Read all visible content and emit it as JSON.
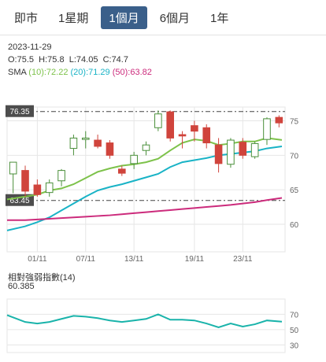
{
  "tabs": [
    {
      "label": "即市",
      "active": false
    },
    {
      "label": "1星期",
      "active": false
    },
    {
      "label": "1個月",
      "active": true
    },
    {
      "label": "6個月",
      "active": false
    },
    {
      "label": "1年",
      "active": false
    }
  ],
  "info": {
    "date": "2023-11-29",
    "open_label": "O:",
    "open": "75.5",
    "high_label": "H:",
    "high": "75.8",
    "low_label": "L:",
    "low": "74.05",
    "close_label": "C:",
    "close": "74.7",
    "sma_label": "SMA",
    "sma10_label": "(10):",
    "sma10": "72.22",
    "sma20_label": "(20):",
    "sma20": "71.29",
    "sma50_label": "(50):",
    "sma50": "63.82"
  },
  "rsi": {
    "title": "相對強弱指數",
    "period": "(14)",
    "value": "60.385"
  },
  "colors": {
    "up": "#ffffff",
    "up_stroke": "#4a8f3a",
    "down": "#d0443c",
    "sma10": "#7dc24a",
    "sma20": "#19b3c6",
    "sma50": "#cc2b7c",
    "rsi": "#19b3aa",
    "grid": "#e6e6e6"
  },
  "chart_data": [
    {
      "type": "candlestick",
      "x_tick_labels": [
        "01/11",
        "07/11",
        "13/11",
        "19/11",
        "23/11"
      ],
      "x_tick_indices": [
        2,
        6,
        10,
        15,
        19
      ],
      "y_ticks": [
        60,
        65,
        70,
        75
      ],
      "ylim": [
        56,
        77
      ],
      "high_marker": 76.35,
      "low_marker": 63.45,
      "candles": [
        {
          "open": 67.3,
          "high": 69.0,
          "low": 64.5,
          "close": 69.0
        },
        {
          "open": 67.8,
          "high": 68.5,
          "low": 64.0,
          "close": 64.8
        },
        {
          "open": 65.7,
          "high": 66.5,
          "low": 64.0,
          "close": 64.3
        },
        {
          "open": 64.6,
          "high": 66.5,
          "low": 64.0,
          "close": 66.0
        },
        {
          "open": 66.3,
          "high": 68.0,
          "low": 65.5,
          "close": 67.8
        },
        {
          "open": 71.0,
          "high": 73.0,
          "low": 70.0,
          "close": 72.5
        },
        {
          "open": 72.3,
          "high": 73.5,
          "low": 71.0,
          "close": 72.5
        },
        {
          "open": 72.2,
          "high": 73.0,
          "low": 71.0,
          "close": 71.3
        },
        {
          "open": 71.8,
          "high": 72.2,
          "low": 69.5,
          "close": 70.0
        },
        {
          "open": 68.0,
          "high": 68.5,
          "low": 67.0,
          "close": 67.4
        },
        {
          "open": 68.8,
          "high": 70.5,
          "low": 68.0,
          "close": 70.0
        },
        {
          "open": 70.7,
          "high": 72.0,
          "low": 70.0,
          "close": 71.5
        },
        {
          "open": 74.0,
          "high": 76.5,
          "low": 73.5,
          "close": 76.0
        },
        {
          "open": 76.3,
          "high": 76.5,
          "low": 72.0,
          "close": 72.5
        },
        {
          "open": 73.0,
          "high": 73.5,
          "low": 71.0,
          "close": 72.8
        },
        {
          "open": 74.3,
          "high": 75.0,
          "low": 72.0,
          "close": 73.5
        },
        {
          "open": 74.0,
          "high": 74.5,
          "low": 71.0,
          "close": 71.8
        },
        {
          "open": 71.5,
          "high": 72.5,
          "low": 67.5,
          "close": 68.8
        },
        {
          "open": 68.7,
          "high": 72.5,
          "low": 68.2,
          "close": 72.2
        },
        {
          "open": 71.9,
          "high": 72.5,
          "low": 69.5,
          "close": 70.0
        },
        {
          "open": 69.8,
          "high": 72.0,
          "low": 69.5,
          "close": 71.7
        },
        {
          "open": 72.3,
          "high": 75.5,
          "low": 71.5,
          "close": 75.3
        },
        {
          "open": 75.5,
          "high": 75.8,
          "low": 74.05,
          "close": 74.7
        }
      ],
      "series": [
        {
          "name": "(10)",
          "values": [
            63.6,
            64.0,
            64.3,
            64.9,
            65.2,
            65.8,
            66.7,
            67.6,
            68.1,
            68.5,
            68.7,
            69.0,
            69.5,
            70.7,
            71.8,
            72.3,
            72.1,
            71.5,
            71.7,
            72.0,
            72.0,
            72.5,
            72.22
          ]
        },
        {
          "name": "(20)",
          "values": [
            59.1,
            59.7,
            60.3,
            61.0,
            62.0,
            63.0,
            64.0,
            64.9,
            65.4,
            65.8,
            66.3,
            66.8,
            67.3,
            68.3,
            69.0,
            69.3,
            69.6,
            70.0,
            70.2,
            70.4,
            70.6,
            71.0,
            71.29
          ]
        },
        {
          "name": "(50)",
          "values": [
            60.6,
            60.6,
            60.7,
            60.8,
            60.9,
            61.0,
            61.1,
            61.2,
            61.3,
            61.45,
            61.6,
            61.75,
            61.9,
            62.05,
            62.2,
            62.35,
            62.5,
            62.65,
            62.8,
            63.0,
            63.2,
            63.5,
            63.82
          ]
        }
      ]
    },
    {
      "type": "line",
      "title": "相對強弱指數",
      "y_ticks": [
        30,
        50,
        70
      ],
      "ylim": [
        20,
        90
      ],
      "series": [
        {
          "name": "(14)",
          "values": [
            69,
            60,
            58,
            60,
            64,
            68,
            67,
            65,
            62,
            60,
            62,
            64,
            70,
            63,
            63,
            62,
            58,
            53,
            58,
            54,
            57,
            62,
            60.385
          ]
        }
      ]
    }
  ]
}
